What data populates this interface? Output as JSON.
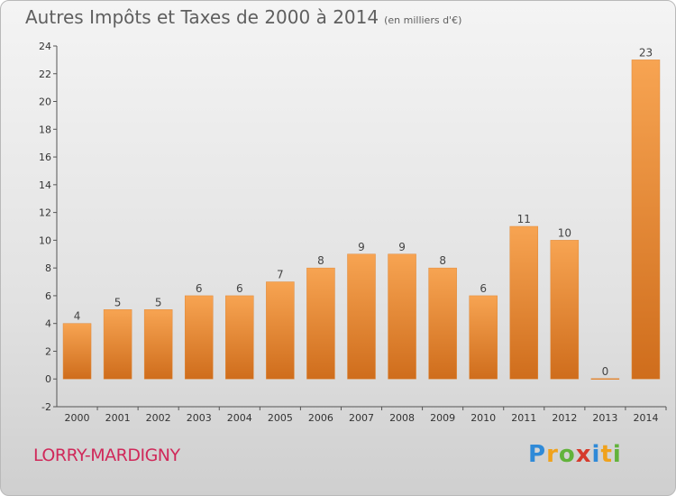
{
  "title": "Autres Impôts et Taxes de 2000 à 2014",
  "subtitle": "(en milliers d'€)",
  "commune": "LORRY-MARDIGNY",
  "logo": {
    "letters": [
      "P",
      "r",
      "o",
      "x",
      "i",
      "t",
      "i"
    ],
    "colors": [
      "#2f8ad8",
      "#f0a21c",
      "#62b33b",
      "#d63a2c",
      "#2f8ad8",
      "#f0a21c",
      "#62b33b"
    ]
  },
  "chart_data": {
    "type": "bar",
    "categories": [
      "2000",
      "2001",
      "2002",
      "2003",
      "2004",
      "2005",
      "2006",
      "2007",
      "2008",
      "2009",
      "2010",
      "2011",
      "2012",
      "2013",
      "2014"
    ],
    "values": [
      4,
      5,
      5,
      6,
      6,
      7,
      8,
      9,
      9,
      8,
      6,
      11,
      10,
      0,
      23
    ],
    "data_labels": [
      "4",
      "5",
      "5",
      "6",
      "6",
      "7",
      "8",
      "9",
      "9",
      "8",
      "6",
      "11",
      "10",
      "0",
      "23"
    ],
    "yticks": [
      -2,
      0,
      2,
      4,
      6,
      8,
      10,
      12,
      14,
      16,
      18,
      20,
      22,
      24
    ],
    "ylim": [
      -2,
      24
    ],
    "xlabel": "",
    "ylabel": "",
    "grid": false,
    "bar_color_top": "#f7a452",
    "bar_color_bottom": "#cf6d1c"
  }
}
